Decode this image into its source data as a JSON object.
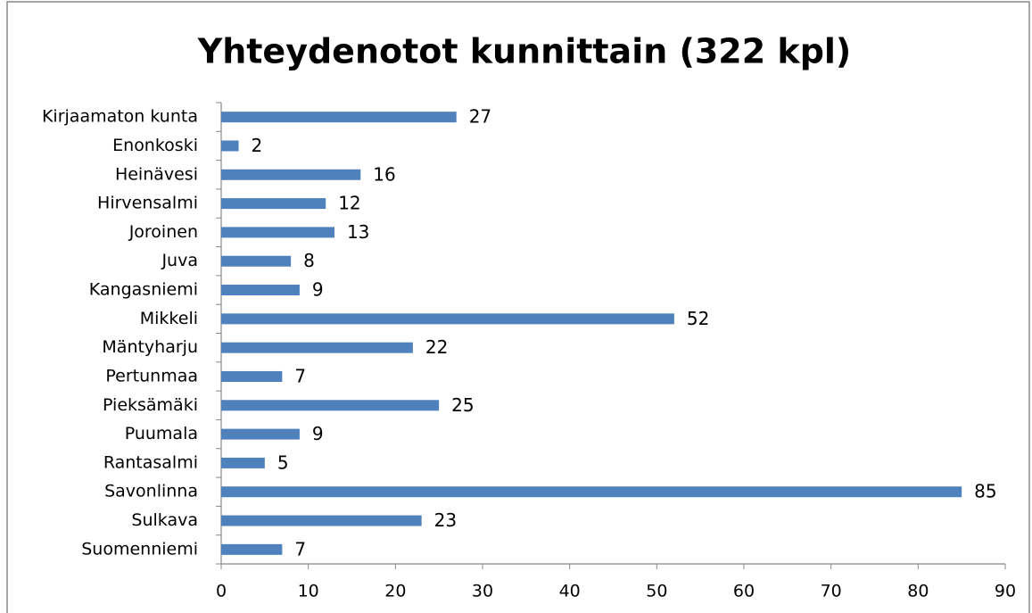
{
  "chart_data": {
    "type": "bar",
    "orientation": "horizontal",
    "title": "Yhteydenotot kunnittain (322 kpl)",
    "categories": [
      "Kirjaamaton kunta",
      "Enonkoski",
      "Heinävesi",
      "Hirvensalmi",
      "Joroinen",
      "Juva",
      "Kangasniemi",
      "Mikkeli",
      "Mäntyharju",
      "Pertunmaa",
      "Pieksämäki",
      "Puumala",
      "Rantasalmi",
      "Savonlinna",
      "Sulkava",
      "Suomenniemi"
    ],
    "values": [
      27,
      2,
      16,
      12,
      13,
      8,
      9,
      52,
      22,
      7,
      25,
      9,
      5,
      85,
      23,
      7
    ],
    "color": "#4f81bd",
    "xlim": [
      0,
      90
    ],
    "xticks": [
      0,
      10,
      20,
      30,
      40,
      50,
      60,
      70,
      80,
      90
    ],
    "grid": false
  }
}
